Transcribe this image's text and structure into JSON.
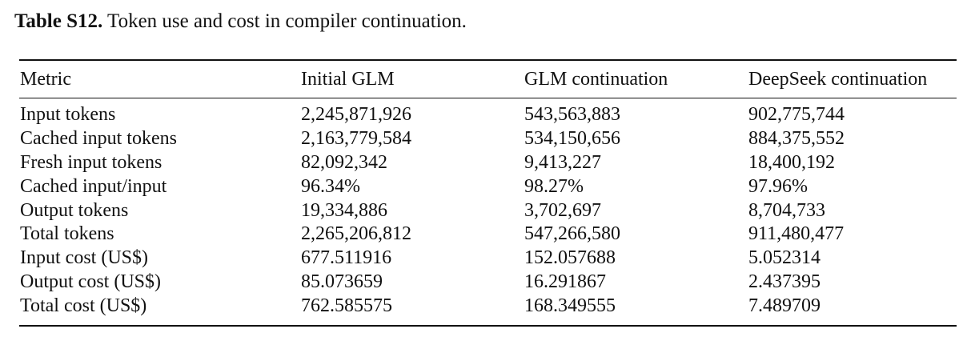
{
  "caption": {
    "label": "Table S12.",
    "text": "Token use and cost in compiler continuation."
  },
  "table": {
    "headers": [
      "Metric",
      "Initial GLM",
      "GLM continuation",
      "DeepSeek continuation"
    ],
    "rows": [
      [
        "Input tokens",
        "2,245,871,926",
        "543,563,883",
        "902,775,744"
      ],
      [
        "Cached input tokens",
        "2,163,779,584",
        "534,150,656",
        "884,375,552"
      ],
      [
        "Fresh input tokens",
        "82,092,342",
        "9,413,227",
        "18,400,192"
      ],
      [
        "Cached input/input",
        "96.34%",
        "98.27%",
        "97.96%"
      ],
      [
        "Output tokens",
        "19,334,886",
        "3,702,697",
        "8,704,733"
      ],
      [
        "Total tokens",
        "2,265,206,812",
        "547,266,580",
        "911,480,477"
      ],
      [
        "Input cost (US$)",
        "677.511916",
        "152.057688",
        "5.052314"
      ],
      [
        "Output cost (US$)",
        "85.073659",
        "16.291867",
        "2.437395"
      ],
      [
        "Total cost (US$)",
        "762.585575",
        "168.349555",
        "7.489709"
      ]
    ]
  }
}
